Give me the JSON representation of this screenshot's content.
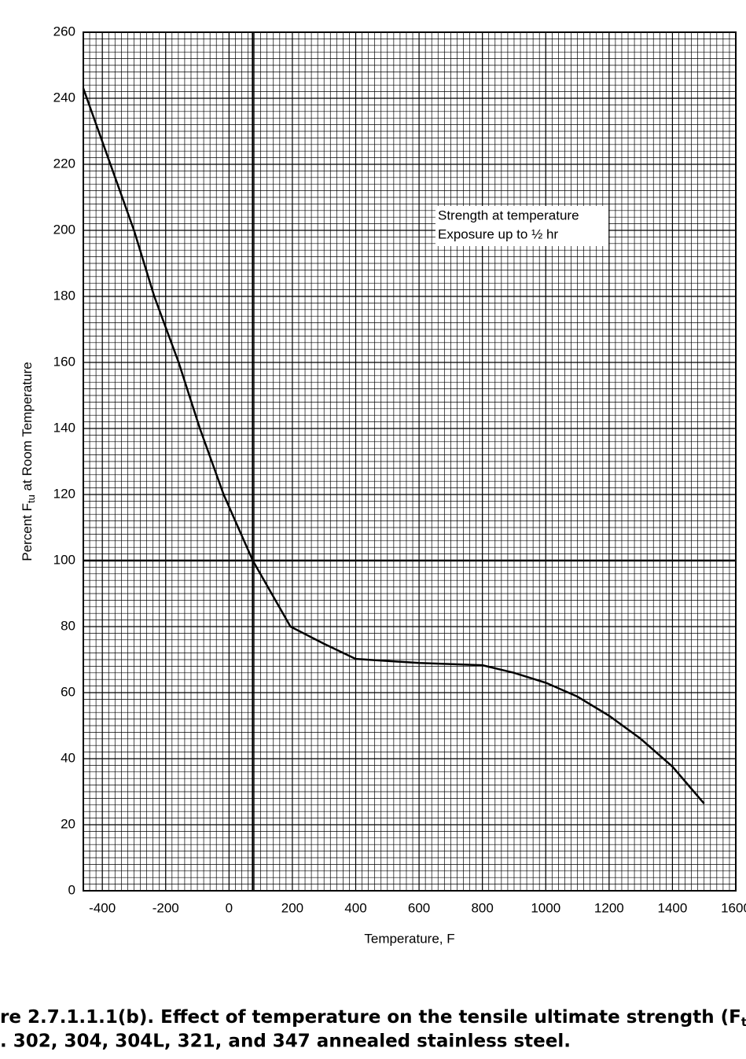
{
  "chart_data": {
    "type": "line",
    "title_lines": [
      "re 2.7.1.1.1(b).  Effect of temperature on the tensile ultimate strength (F",
      ". 302, 304, 304L, 321, and 347 annealed stainless steel."
    ],
    "title_subscript": "tu",
    "x_label": "Temperature, F",
    "y_label": {
      "before": "Percent F",
      "subscript": "tu",
      "after": " at Room Temperature"
    },
    "annotation": [
      "Strength at temperature",
      "Exposure up to ½ hr"
    ],
    "x": [
      -460,
      -300,
      -236,
      -159,
      -92,
      -17,
      75,
      194,
      300,
      400,
      600,
      800,
      900,
      1000,
      1100,
      1200,
      1300,
      1400,
      1500
    ],
    "series": [
      {
        "name": "Strength at temperature",
        "color": "#000000",
        "values": [
          243,
          200,
          180,
          160,
          140,
          120,
          100,
          80,
          74.8,
          70.2,
          69,
          68.3,
          66,
          63,
          58.8,
          53,
          46,
          37.6,
          26.4
        ]
      }
    ],
    "xlim": [
      -460,
      1600
    ],
    "ylim": [
      0,
      260
    ],
    "xticks": [
      -400,
      -200,
      0,
      200,
      400,
      600,
      800,
      1000,
      1200,
      1400,
      1600
    ],
    "yticks": [
      0,
      20,
      40,
      60,
      80,
      100,
      120,
      140,
      160,
      180,
      200,
      220,
      240,
      260
    ],
    "grid": true,
    "minor_grid": {
      "x": 20,
      "y": 2
    },
    "reference_lines": {
      "x": 75,
      "y": 100
    }
  }
}
